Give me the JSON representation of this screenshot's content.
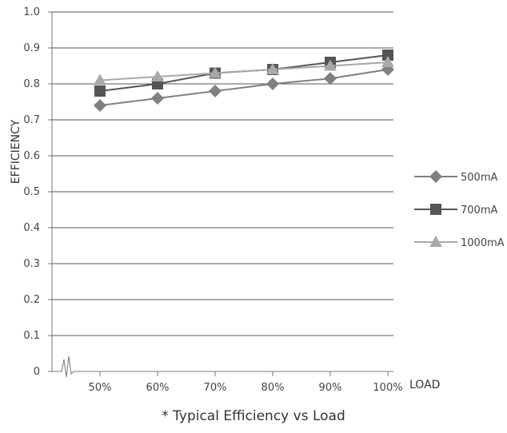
{
  "caption": "* Typical Efficiency vs Load",
  "colors": {
    "grid": "#555555",
    "axis": "#777777",
    "text": "#444444"
  },
  "chart_data": {
    "type": "line",
    "title": "",
    "xlabel": "LOAD",
    "ylabel": "EFFICIENCY",
    "categories": [
      "50%",
      "60%",
      "70%",
      "80%",
      "90%",
      "100%"
    ],
    "ylim": [
      0,
      1.0
    ],
    "yticks": [
      "0",
      "0.1",
      "0.2",
      "0.3",
      "0.4",
      "0.5",
      "0.6",
      "0.7",
      "0.8",
      "0.9",
      "1.0"
    ],
    "grid": true,
    "axis_break": true,
    "legend_position": "right",
    "series": [
      {
        "name": "500mA",
        "marker": "diamond",
        "color": "#808080",
        "values": [
          0.74,
          0.76,
          0.78,
          0.8,
          0.815,
          0.84
        ]
      },
      {
        "name": "700mA",
        "marker": "square",
        "color": "#555555",
        "values": [
          0.78,
          0.8,
          0.83,
          0.84,
          0.86,
          0.88
        ]
      },
      {
        "name": "1000mA",
        "marker": "triangle",
        "color": "#a8a8a8",
        "values": [
          0.81,
          0.82,
          0.83,
          0.84,
          0.85,
          0.86
        ]
      }
    ]
  }
}
